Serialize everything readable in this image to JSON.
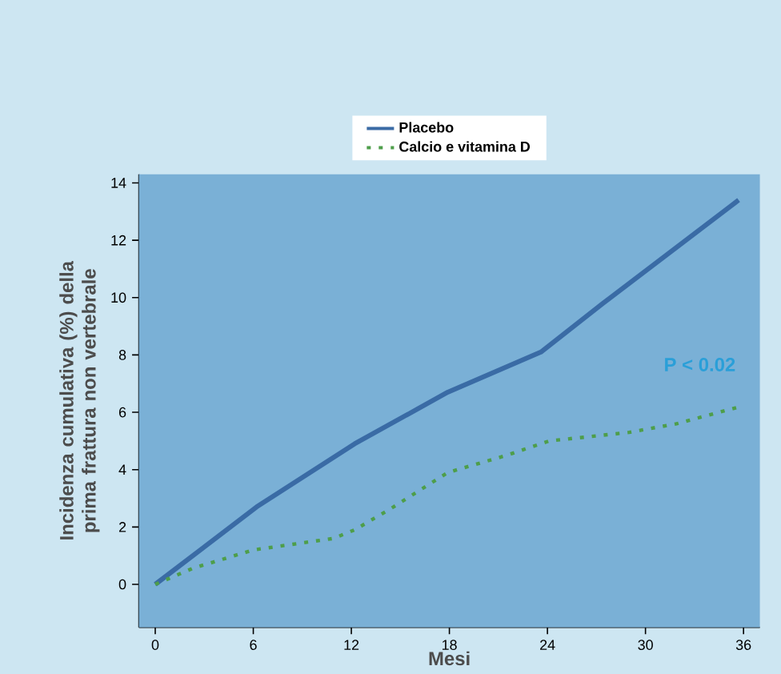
{
  "chart_data": {
    "type": "line",
    "xlabel": "Mesi",
    "ylabel": "Incidenza cumulativa (%) della prima frattura non vertebrale",
    "xlim": [
      -1,
      37
    ],
    "ylim": [
      -1.5,
      14.3
    ],
    "xticks": [
      0,
      6,
      12,
      18,
      24,
      30,
      36
    ],
    "yticks": [
      0,
      2,
      4,
      6,
      8,
      10,
      12,
      14
    ],
    "series": [
      {
        "name": "Placebo",
        "color": "#3a6ba5",
        "line_style": "solid",
        "x": [
          0,
          6.2,
          12.2,
          17.9,
          23.6,
          27.4,
          35.7
        ],
        "values": [
          0,
          2.7,
          4.9,
          6.7,
          8.1,
          9.8,
          13.4
        ]
      },
      {
        "name": "Calcio e vitamina D",
        "color": "#4e9e4a",
        "line_style": "dotted",
        "x": [
          0,
          2.3,
          6,
          10.9,
          12.2,
          14.3,
          17.9,
          21.5,
          24.1,
          29,
          31.9,
          35.8
        ],
        "values": [
          0,
          0.56,
          1.2,
          1.6,
          1.9,
          2.6,
          3.9,
          4.5,
          5.0,
          5.3,
          5.6,
          6.2
        ]
      }
    ],
    "annotations": [
      "P < 0.02"
    ],
    "legend": "top",
    "grid": false,
    "marker": "none"
  }
}
